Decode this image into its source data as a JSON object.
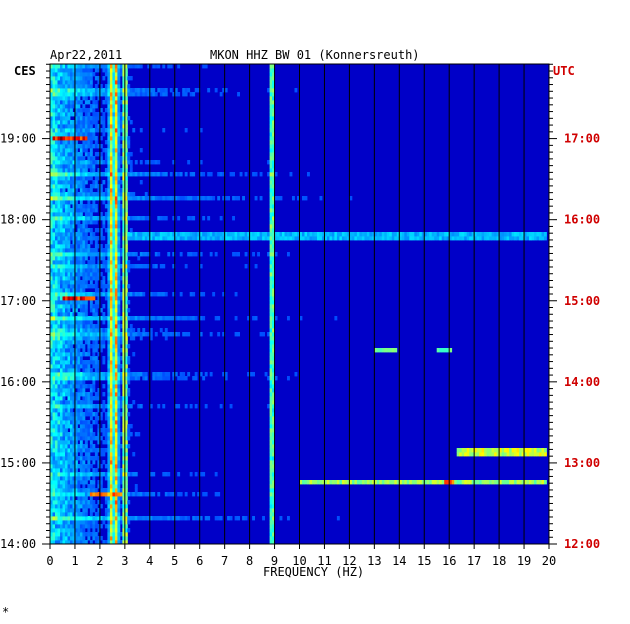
{
  "chart_data": {
    "type": "heatmap",
    "title_left": "Apr22,2011",
    "title": "MKON HHZ BW 01 (Konnersreuth)",
    "left_tz": "CES",
    "right_tz": "UTC",
    "xlabel": "FREQUENCY (HZ)",
    "x_ticks": [
      "0",
      "1",
      "2",
      "3",
      "4",
      "5",
      "6",
      "7",
      "8",
      "9",
      "10",
      "11",
      "12",
      "13",
      "14",
      "15",
      "16",
      "17",
      "18",
      "19",
      "20"
    ],
    "xlim": [
      0,
      20
    ],
    "left_time_labels": [
      "19:00",
      "18:00",
      "17:00",
      "16:00",
      "15:00",
      "14:00"
    ],
    "left_time_hours": [
      19,
      18,
      17,
      16,
      15,
      14
    ],
    "right_time_labels": [
      "17:00",
      "16:00",
      "15:00",
      "14:00",
      "13:00",
      "12:00"
    ],
    "time_range_ces": [
      14.0,
      19.92
    ],
    "colors": {
      "background": "#0000c8",
      "right_axis": "#d00000",
      "frame": "#000000"
    },
    "persistent_lines_hz": [
      {
        "freq": 2.45,
        "strength": 0.55
      },
      {
        "freq": 2.65,
        "strength": 0.6
      },
      {
        "freq": 3.0,
        "strength": 0.6
      },
      {
        "freq": 8.9,
        "strength": 0.55
      }
    ],
    "hot_spots": [
      {
        "time": 19.0,
        "f_start": 0.1,
        "f_end": 1.5,
        "strength": 1.0
      },
      {
        "time": 17.03,
        "f_start": 0.5,
        "f_end": 1.8,
        "strength": 1.0
      },
      {
        "time": 15.12,
        "f_start": 16.3,
        "f_end": 19.9,
        "strength": 0.65
      },
      {
        "time": 14.77,
        "f_start": 10.0,
        "f_end": 19.9,
        "strength": 0.6
      },
      {
        "time": 14.77,
        "f_start": 15.8,
        "f_end": 16.2,
        "strength": 0.95
      },
      {
        "time": 14.62,
        "f_start": 1.6,
        "f_end": 2.9,
        "strength": 0.85
      },
      {
        "time": 17.8,
        "f_start": 3.0,
        "f_end": 19.9,
        "strength": 0.35
      },
      {
        "time": 16.39,
        "f_start": 13.0,
        "f_end": 13.9,
        "strength": 0.55
      },
      {
        "time": 16.39,
        "f_start": 15.5,
        "f_end": 16.1,
        "strength": 0.55
      }
    ],
    "grid": true,
    "footnote": "*"
  }
}
